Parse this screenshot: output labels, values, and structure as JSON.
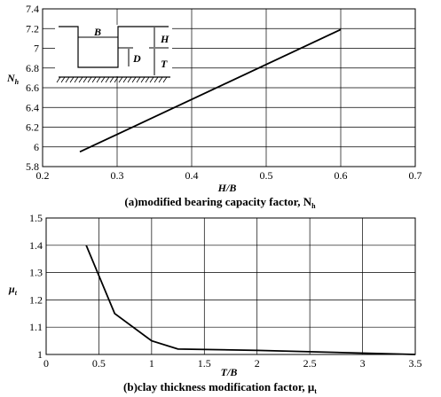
{
  "chart_data": [
    {
      "type": "line",
      "title": "",
      "caption": "(a)modified bearing capacity factor, N",
      "caption_sub": "h",
      "xlabel": "H/B",
      "ylabel": "N",
      "ylabel_sub": "h",
      "xlim": [
        0.2,
        0.7
      ],
      "ylim": [
        5.8,
        7.4
      ],
      "xticks": [
        0.2,
        0.3,
        0.4,
        0.5,
        0.6,
        0.7
      ],
      "yticks": [
        5.8,
        6,
        6.2,
        6.4,
        6.6,
        6.8,
        7,
        7.2,
        7.4
      ],
      "grid": true,
      "series": [
        {
          "x": [
            0.25,
            0.6
          ],
          "y": [
            5.95,
            7.19
          ]
        }
      ],
      "inset_labels": {
        "B": "B",
        "H": "H",
        "D": "D",
        "T": "T"
      }
    },
    {
      "type": "line",
      "title": "",
      "caption": "(b)clay thickness modification factor, μ",
      "caption_sub": "t",
      "xlabel": "T/B",
      "ylabel": "μ",
      "ylabel_sub": "t",
      "xlim": [
        0,
        3.5
      ],
      "ylim": [
        1,
        1.5
      ],
      "xticks": [
        0,
        0.5,
        1,
        1.5,
        2,
        2.5,
        3,
        3.5
      ],
      "yticks": [
        1,
        1.1,
        1.2,
        1.3,
        1.4,
        1.5
      ],
      "grid": true,
      "series": [
        {
          "x": [
            0.38,
            0.65,
            1.0,
            1.25,
            2.0,
            3.5
          ],
          "y": [
            1.4,
            1.15,
            1.05,
            1.02,
            1.015,
            1.0
          ]
        }
      ]
    }
  ]
}
